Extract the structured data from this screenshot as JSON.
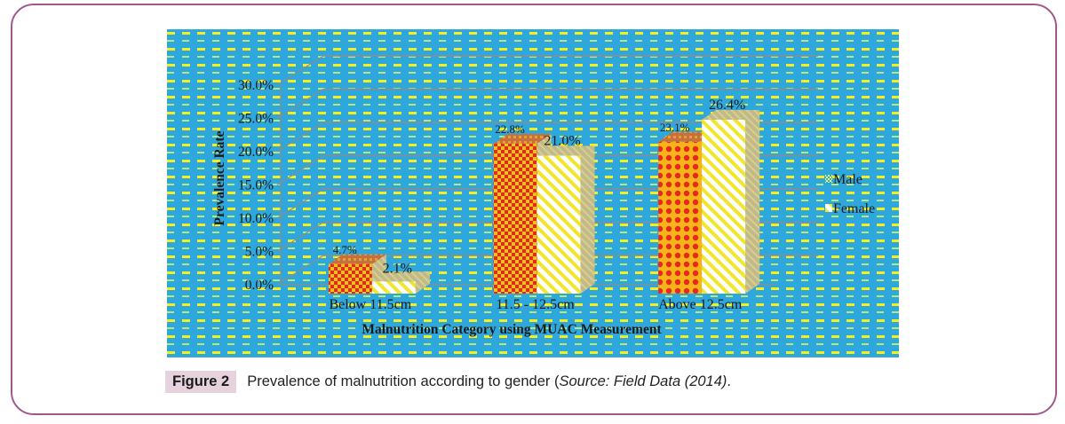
{
  "figure": {
    "label": "Figure 2",
    "caption_main": "Prevalence of malnutrition according to gender (",
    "caption_source": "Source: Field Data (2014)",
    "caption_end": "."
  },
  "colors": {
    "background": "#2ea7dd",
    "stripe_yellow": "#f6ee1f",
    "stripe_green": "#b8e87a",
    "male_base": "#e8281c",
    "male_alt": "#f5c21a",
    "female_base": "#ffffff",
    "female_alt": "#f2e62a",
    "side_shade": "#c2b98a",
    "grid": "#8c8c8c",
    "frame": "#a05a8a"
  },
  "chart_data": {
    "type": "bar",
    "subtype": "3d-clustered",
    "title": "",
    "xlabel": "Malnutrition Category using MUAC Measurement",
    "ylabel": "Prevalence Rate",
    "categories": [
      "Below 11.5cm",
      "11.5 - 12.5cm",
      "Above 12.5cm"
    ],
    "series": [
      {
        "name": "Male",
        "values": [
          4.7,
          22.8,
          23.1
        ],
        "labels": [
          "4.7%",
          "22.8%",
          "23.1%"
        ]
      },
      {
        "name": "Female",
        "values": [
          2.1,
          21.0,
          26.4
        ],
        "labels": [
          "2.1%",
          "21.0%",
          "26.4%"
        ]
      }
    ],
    "ylim": [
      0,
      30
    ],
    "yticks": [
      0,
      5,
      10,
      15,
      20,
      25,
      30
    ],
    "ytick_labels": [
      "0.0%",
      "5.0%",
      "10.0%",
      "15.0%",
      "20.0%",
      "25.0%",
      "30.0%"
    ],
    "grid": true,
    "legend_position": "right"
  }
}
